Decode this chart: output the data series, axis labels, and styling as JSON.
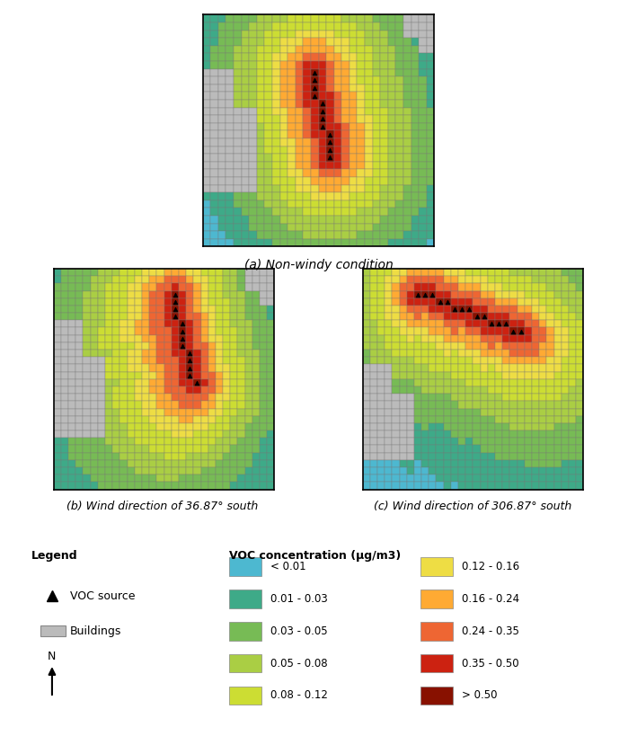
{
  "title_a": "(a) Non-windy condition",
  "title_b": "(b) Wind direction of 36.87° south",
  "title_c": "(c) Wind direction of 306.87° south",
  "legend_title": "Legend",
  "voc_title": "VOC concentration (μg/m3)",
  "grid_size": 30,
  "color_bg": "#4DB8D0",
  "color_teal": "#3EAA88",
  "color_med_green": "#77BB55",
  "color_lt_green": "#AACE44",
  "color_yl_green": "#CCDD33",
  "color_yellow": "#EEDD44",
  "color_lt_orange": "#FFAA33",
  "color_orange": "#EE6633",
  "color_red": "#CC2211",
  "color_dark_red": "#881100",
  "color_building": "#BBBBBB",
  "color_grid_line": "#777777"
}
